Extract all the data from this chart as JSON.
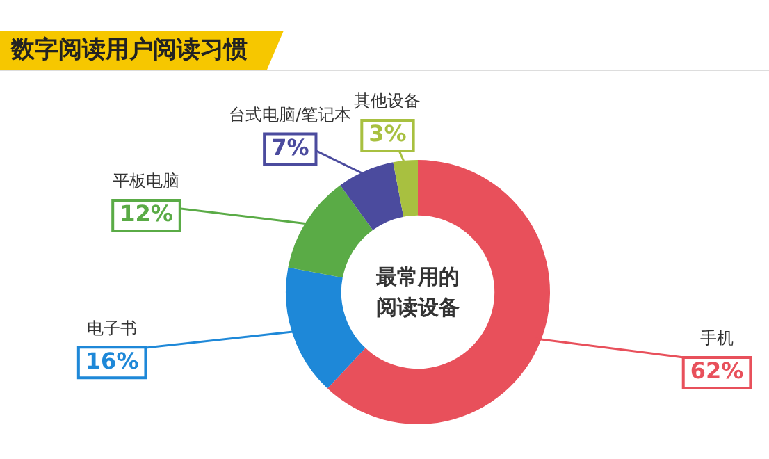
{
  "chart_data": {
    "type": "donut",
    "title": "数字阅读用户阅读习惯",
    "categories": [
      "手机",
      "电子书",
      "平板电脑",
      "台式电脑/笔记本",
      "其他设备"
    ],
    "values": [
      62,
      16,
      12,
      7,
      3
    ],
    "value_labels": [
      "62%",
      "16%",
      "12%",
      "7%",
      "3%"
    ],
    "colors": [
      "#e8505b",
      "#1e88d8",
      "#5aab46",
      "#4b4b9e",
      "#a8c040"
    ],
    "annotations": [
      "最常用的阅读设备"
    ],
    "legend": false
  }
}
